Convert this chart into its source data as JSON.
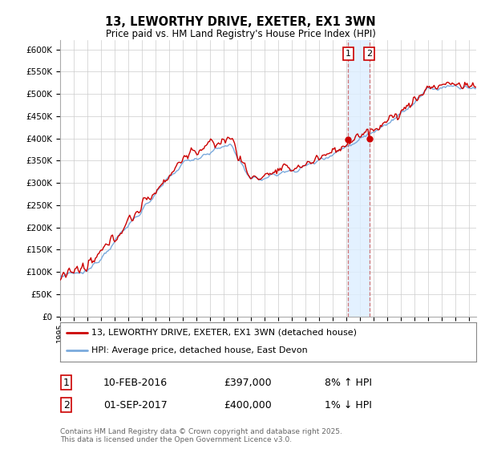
{
  "title": "13, LEWORTHY DRIVE, EXETER, EX1 3WN",
  "subtitle": "Price paid vs. HM Land Registry's House Price Index (HPI)",
  "ylim": [
    0,
    620000
  ],
  "xlim_start": 1995.0,
  "xlim_end": 2025.5,
  "legend_line1": "13, LEWORTHY DRIVE, EXETER, EX1 3WN (detached house)",
  "legend_line2": "HPI: Average price, detached house, East Devon",
  "sale1_date": "10-FEB-2016",
  "sale1_price": "£397,000",
  "sale1_hpi": "8% ↑ HPI",
  "sale2_date": "01-SEP-2017",
  "sale2_price": "£400,000",
  "sale2_hpi": "1% ↓ HPI",
  "sale1_x": 2016.11,
  "sale2_x": 2017.67,
  "sale1_price_val": 397000,
  "sale2_price_val": 400000,
  "footnote": "Contains HM Land Registry data © Crown copyright and database right 2025.\nThis data is licensed under the Open Government Licence v3.0.",
  "line_color_property": "#cc0000",
  "line_color_hpi": "#7aaadd",
  "shade_color": "#ddeeff",
  "dot_color": "#cc0000",
  "bg_color": "#ffffff",
  "grid_color": "#cccccc"
}
